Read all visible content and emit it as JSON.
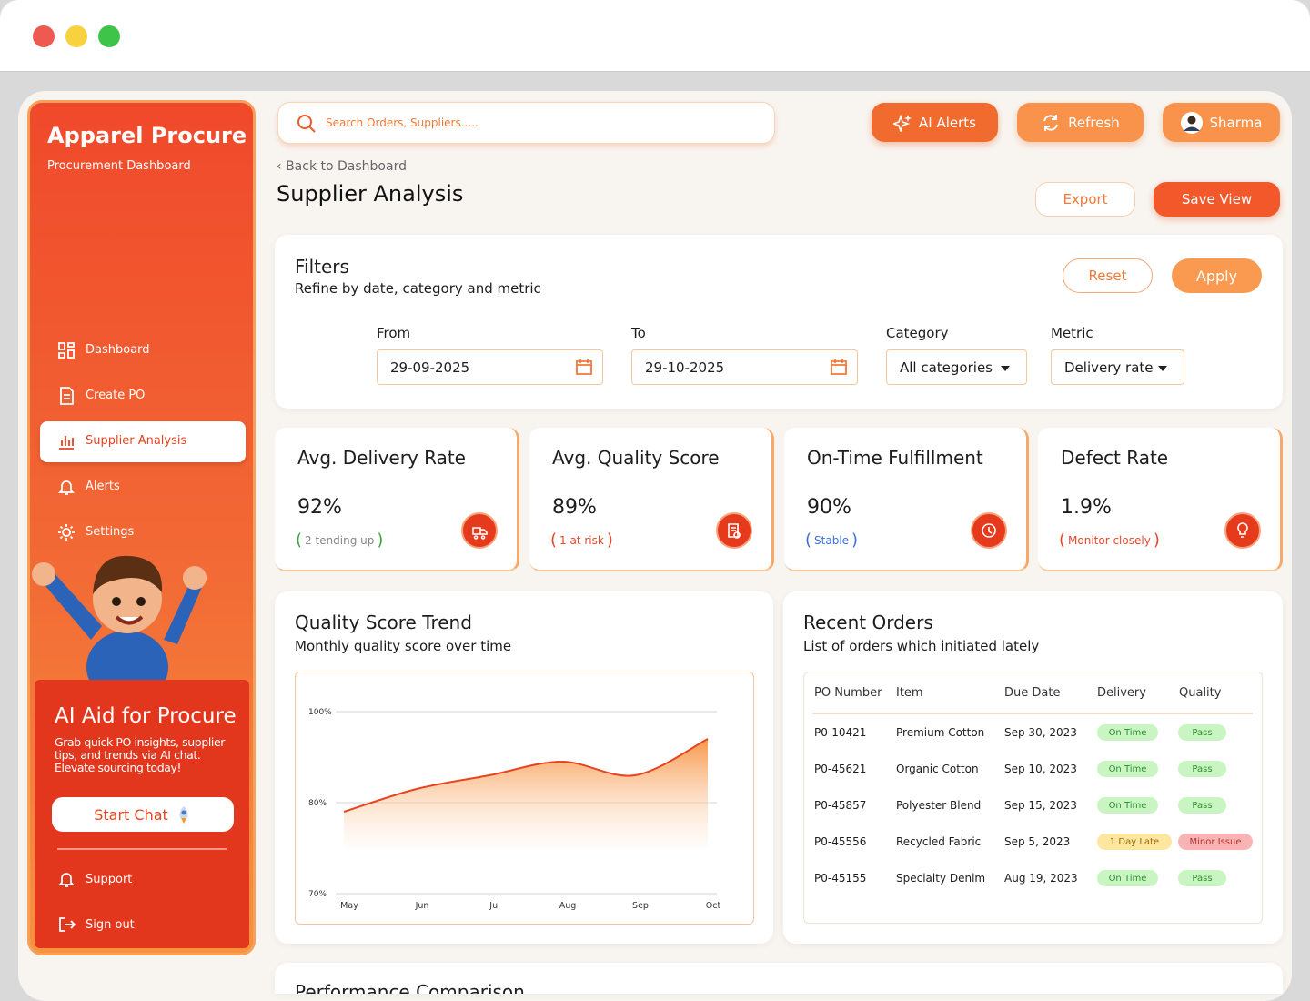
{
  "sidebar": {
    "brand": "Apparel Procure",
    "subtitle": "Procurement Dashboard",
    "nav": [
      "Dashboard",
      "Create PO",
      "Supplier Analysis",
      "Alerts",
      "Settings"
    ],
    "active": 2,
    "promo": {
      "title": "AI Aid for Procure",
      "text": "Grab quick PO insights, supplier tips, and trends via AI chat. Elevate sourcing today!",
      "button": "Start Chat"
    },
    "footer": [
      "Support",
      "Sign out"
    ]
  },
  "header": {
    "search_placeholder": "Search Orders, Suppliers.....",
    "ai_alerts": "AI Alerts",
    "refresh": "Refresh",
    "user": "Sharma",
    "back": "Back to Dashboard",
    "title": "Supplier Analysis",
    "export": "Export",
    "save_view": "Save View"
  },
  "filters": {
    "title": "Filters",
    "subtitle": "Refine by date, category and metric",
    "reset": "Reset",
    "apply": "Apply",
    "fields": [
      {
        "label": "From",
        "value": "29-09-2025"
      },
      {
        "label": "To",
        "value": "29-10-2025"
      },
      {
        "label": "Category",
        "value": "All categories"
      },
      {
        "label": "Metric",
        "value": "Delivery rate"
      }
    ]
  },
  "kpis": [
    {
      "title": "Avg. Delivery Rate",
      "value": "92%",
      "note": "2 tending up",
      "note_color": "#3aa43a"
    },
    {
      "title": "Avg. Quality Score",
      "value": "89%",
      "note": "1 at risk",
      "note_color": "#e5472a"
    },
    {
      "title": "On-Time Fulfillment",
      "value": "90%",
      "note": "Stable",
      "note_color": "#3a6fe0"
    },
    {
      "title": "Defect Rate",
      "value": "1.9%",
      "note": "Monitor closely",
      "note_color": "#e5472a"
    }
  ],
  "chart_data": {
    "type": "area",
    "title": "Quality Score Trend",
    "subtitle": "Monthly quality score over time",
    "categories": [
      "May",
      "Jun",
      "Jul",
      "Aug",
      "Sep",
      "Oct"
    ],
    "values": [
      79,
      83,
      86,
      89,
      86,
      94
    ],
    "color": "#e8431f",
    "ylim": [
      70,
      100
    ],
    "yticks": [
      {
        "value": 100,
        "label": "100%"
      },
      {
        "value": 80,
        "label": "80%"
      },
      {
        "value": 70,
        "label": "70%"
      }
    ],
    "grid": true
  },
  "recent_orders": {
    "title": "Recent Orders",
    "subtitle": "List of orders which initiated lately",
    "columns": [
      "PO Number",
      "Item",
      "Due Date",
      "Delivery",
      "Quality"
    ],
    "rows": [
      [
        "P0-10421",
        "Premium Cotton",
        "Sep 30, 2023",
        {
          "text": "On Time",
          "bg": "#c9f5c2",
          "fg": "#2f8f2f"
        },
        {
          "text": "Pass",
          "bg": "#c9f5c2",
          "fg": "#2f8f2f"
        }
      ],
      [
        "P0-45621",
        "Organic Cotton",
        "Sep 10, 2023",
        {
          "text": "On Time",
          "bg": "#c9f5c2",
          "fg": "#2f8f2f"
        },
        {
          "text": "Pass",
          "bg": "#c9f5c2",
          "fg": "#2f8f2f"
        }
      ],
      [
        "P0-45857",
        "Polyester Blend",
        "Sep 15, 2023",
        {
          "text": "On Time",
          "bg": "#c9f5c2",
          "fg": "#2f8f2f"
        },
        {
          "text": "Pass",
          "bg": "#c9f5c2",
          "fg": "#2f8f2f"
        }
      ],
      [
        "P0-45556",
        "Recycled Fabric",
        "Sep 5, 2023",
        {
          "text": "1 Day Late",
          "bg": "#fde6a0",
          "fg": "#9a6b00"
        },
        {
          "text": "Minor Issue",
          "bg": "#f8b4b4",
          "fg": "#b8322b"
        }
      ],
      [
        "P0-45155",
        "Specialty Denim",
        "Aug 19, 2023",
        {
          "text": "On Time",
          "bg": "#c9f5c2",
          "fg": "#2f8f2f"
        },
        {
          "text": "Pass",
          "bg": "#c9f5c2",
          "fg": "#2f8f2f"
        }
      ]
    ]
  },
  "performance": {
    "title": "Performance Comparison"
  }
}
